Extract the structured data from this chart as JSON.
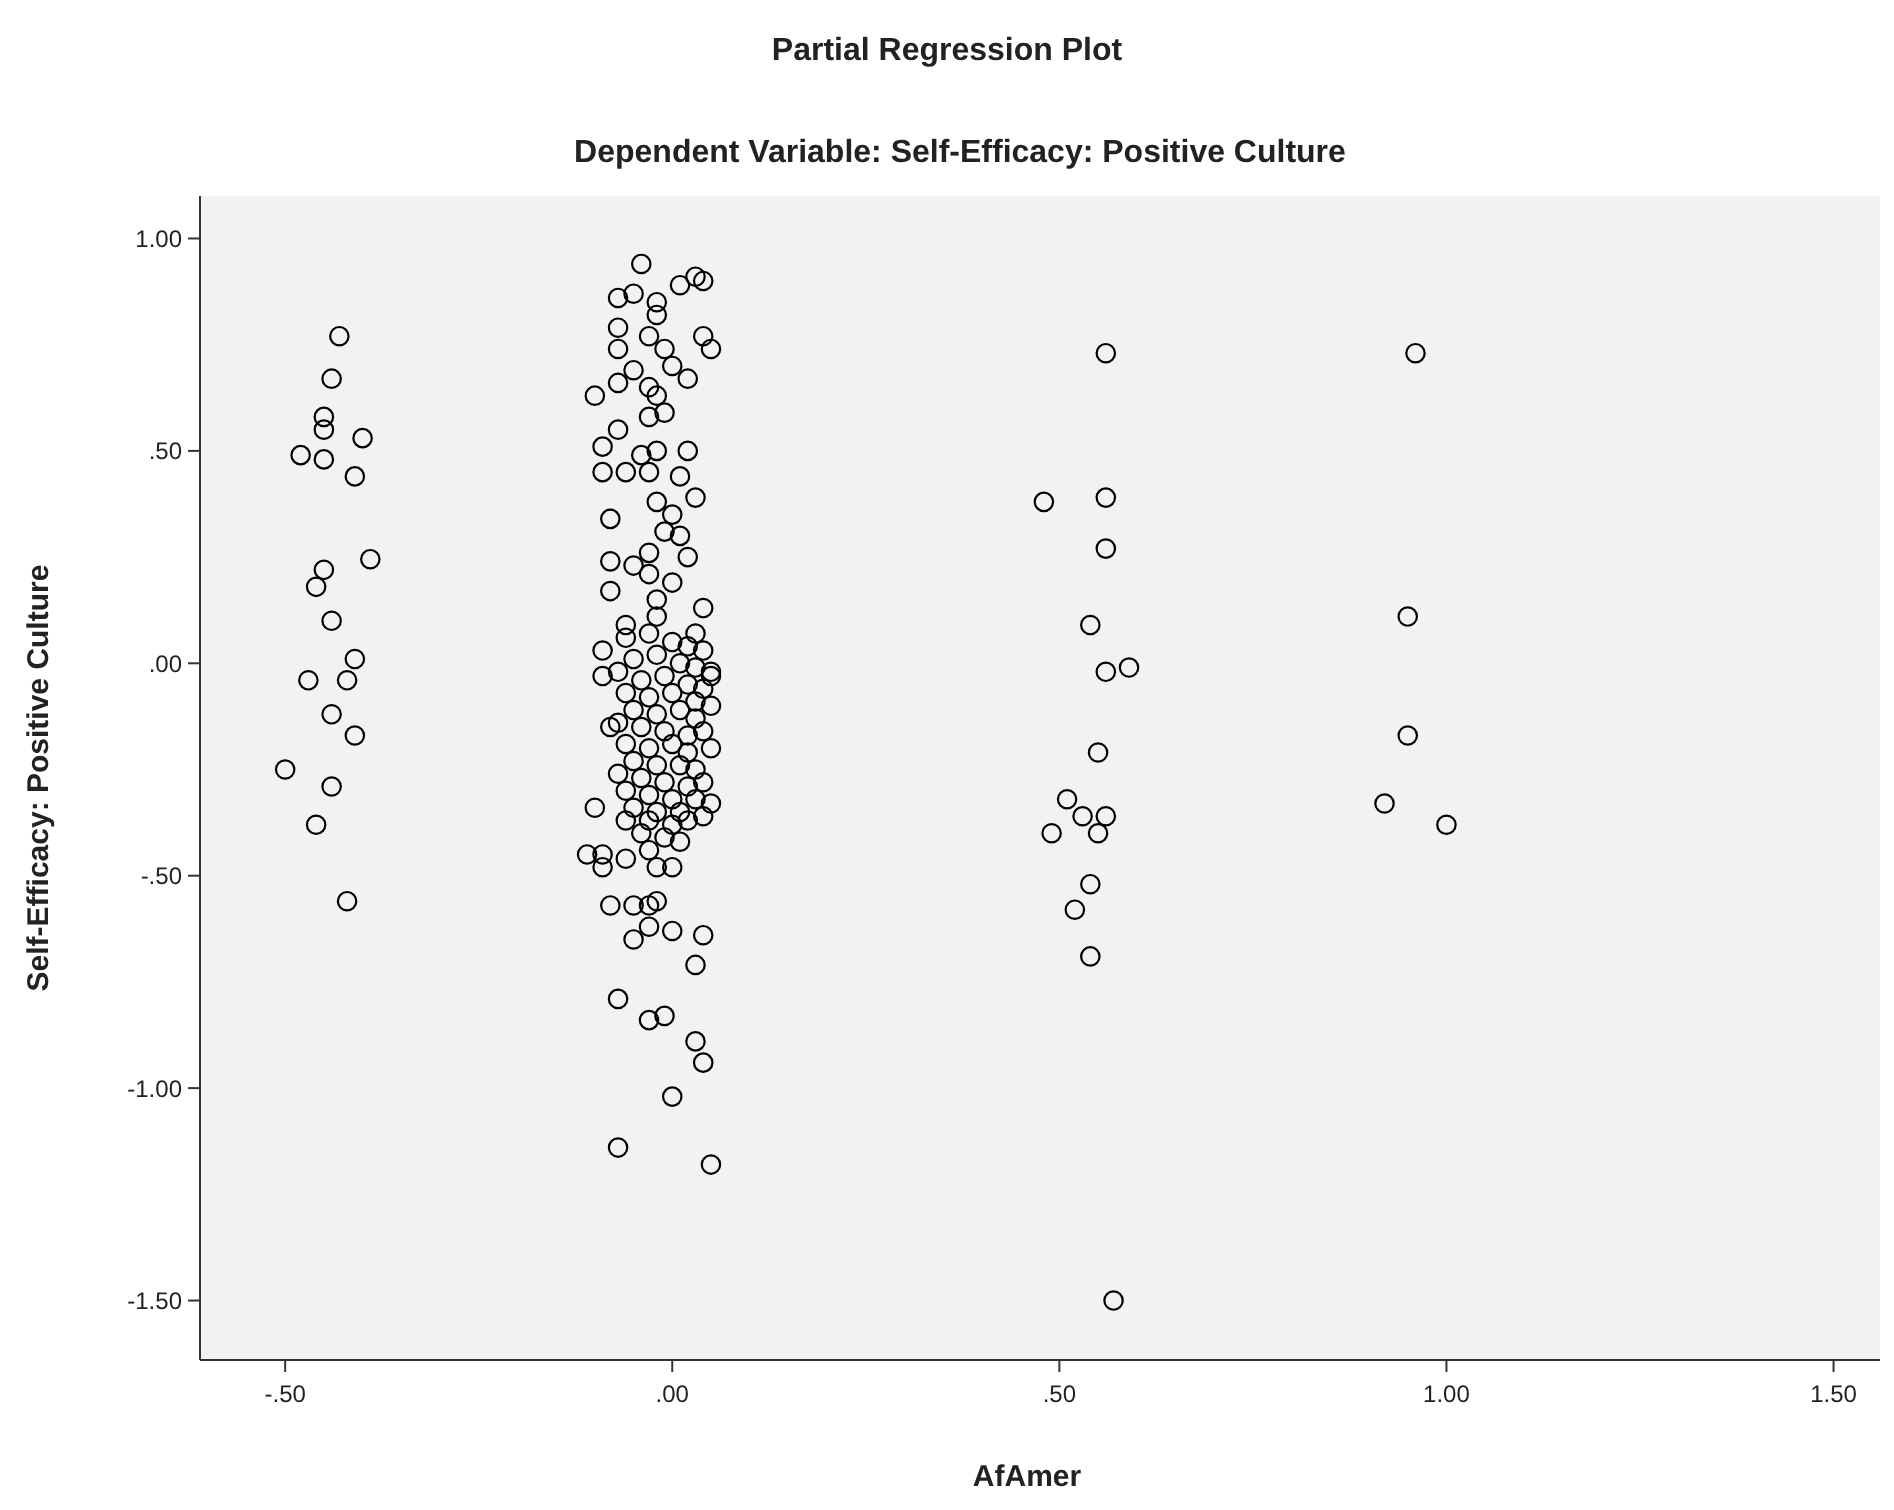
{
  "chart_data": {
    "type": "scatter",
    "title": "Partial Regression Plot",
    "subtitle": "Dependent Variable: Self-Efficacy: Positive Culture",
    "xlabel": "AfAmer",
    "ylabel": "Self-Efficacy: Positive Culture",
    "xlim": [
      -0.61,
      1.56
    ],
    "ylim": [
      -1.64,
      1.1
    ],
    "xticks": [
      {
        "value": -0.5,
        "label": "-.50"
      },
      {
        "value": 0,
        "label": ".00"
      },
      {
        "value": 0.5,
        "label": ".50"
      },
      {
        "value": 1,
        "label": "1.00"
      },
      {
        "value": 1.5,
        "label": "1.50"
      }
    ],
    "yticks": [
      {
        "value": 1,
        "label": "1.00"
      },
      {
        "value": 0.5,
        "label": ".50"
      },
      {
        "value": 0,
        "label": ".00"
      },
      {
        "value": -0.5,
        "label": "-.50"
      },
      {
        "value": -1,
        "label": "-1.00"
      },
      {
        "value": -1.5,
        "label": "-1.50"
      }
    ],
    "grid": false,
    "marker": "circle",
    "series": [
      {
        "color": "#000000",
        "x": [
          -0.43,
          -0.44,
          -0.45,
          -0.45,
          -0.4,
          -0.48,
          -0.45,
          -0.41,
          -0.39,
          -0.45,
          -0.46,
          -0.44,
          -0.41,
          -0.47,
          -0.42,
          -0.44,
          -0.41,
          -0.5,
          -0.44,
          -0.46,
          -0.42,
          0.56,
          0.48,
          0.56,
          0.56,
          0.54,
          0.56,
          0.59,
          0.55,
          0.51,
          0.53,
          0.56,
          0.55,
          0.49,
          0.54,
          0.52,
          0.54,
          0.57,
          0.96,
          0.95,
          0.95,
          0.92,
          1.0,
          -0.04,
          -0.07,
          -0.05,
          -0.02,
          0.01,
          0.03,
          0.04,
          -0.02,
          -0.07,
          -0.07,
          -0.03,
          -0.01,
          0.04,
          0.05,
          0.0,
          -0.05,
          0.02,
          -0.1,
          -0.07,
          -0.03,
          -0.02,
          -0.03,
          -0.01,
          -0.07,
          -0.09,
          -0.09,
          -0.06,
          -0.04,
          -0.02,
          0.02,
          -0.03,
          -0.02,
          0.01,
          0.03,
          0.0,
          -0.08,
          -0.01,
          0.01,
          -0.03,
          0.02,
          -0.08,
          -0.05,
          -0.03,
          -0.08,
          0.0,
          -0.02,
          -0.06,
          0.04,
          -0.02,
          -0.09,
          -0.09,
          0.03,
          0.05,
          -0.08,
          -0.1,
          -0.11,
          -0.09,
          -0.09,
          -0.06,
          -0.02,
          0.0,
          -0.08,
          -0.05,
          -0.03,
          -0.02,
          -0.05,
          -0.03,
          0.0,
          0.04,
          0.03,
          -0.07,
          -0.03,
          -0.01,
          0.03,
          0.04,
          0.0,
          -0.07,
          0.05,
          -0.06,
          -0.03,
          0.0,
          0.02,
          0.04,
          -0.05,
          -0.02,
          0.01,
          0.03,
          0.05,
          -0.07,
          -0.04,
          -0.01,
          0.02,
          0.04,
          -0.06,
          -0.03,
          0.0,
          0.03,
          0.05,
          -0.05,
          -0.02,
          0.01,
          0.03,
          -0.07,
          -0.04,
          -0.01,
          0.02,
          0.04,
          -0.06,
          -0.03,
          0.0,
          0.02,
          0.05,
          -0.05,
          -0.02,
          0.01,
          0.03,
          -0.07,
          -0.04,
          -0.01,
          0.02,
          0.04,
          -0.06,
          -0.03,
          0.0,
          0.03,
          0.05,
          -0.05,
          -0.02,
          0.01,
          0.04,
          -0.06,
          -0.03,
          0.0,
          0.02,
          -0.04,
          -0.01,
          0.01,
          -0.03
        ],
        "values": [
          0.77,
          0.67,
          0.58,
          0.55,
          0.53,
          0.49,
          0.48,
          0.44,
          0.245,
          0.22,
          0.18,
          0.1,
          0.01,
          -0.04,
          -0.04,
          -0.12,
          -0.17,
          -0.25,
          -0.29,
          -0.38,
          -0.56,
          0.73,
          0.38,
          0.39,
          0.27,
          0.09,
          -0.02,
          -0.01,
          -0.21,
          -0.32,
          -0.36,
          -0.36,
          -0.4,
          -0.4,
          -0.52,
          -0.58,
          -0.69,
          -1.5,
          0.73,
          0.11,
          -0.17,
          -0.33,
          -0.38,
          0.94,
          0.86,
          0.87,
          0.85,
          0.89,
          0.91,
          0.9,
          0.82,
          0.79,
          0.74,
          0.77,
          0.74,
          0.77,
          0.74,
          0.7,
          0.69,
          0.67,
          0.63,
          0.66,
          0.65,
          0.63,
          0.58,
          0.59,
          0.55,
          0.51,
          0.45,
          0.45,
          0.49,
          0.5,
          0.5,
          0.45,
          0.38,
          0.44,
          0.39,
          0.35,
          0.34,
          0.31,
          0.3,
          0.26,
          0.25,
          0.24,
          0.23,
          0.21,
          0.17,
          0.19,
          0.15,
          0.09,
          0.13,
          0.11,
          0.03,
          -0.03,
          0.07,
          -0.02,
          -0.15,
          -0.34,
          -0.45,
          -0.45,
          -0.48,
          -0.46,
          -0.48,
          -0.48,
          -0.57,
          -0.57,
          -0.57,
          -0.56,
          -0.65,
          -0.62,
          -0.63,
          -0.64,
          -0.71,
          -0.79,
          -0.84,
          -0.83,
          -0.89,
          -0.94,
          -1.02,
          -1.14,
          -1.18,
          0.06,
          0.07,
          0.05,
          0.04,
          0.03,
          0.01,
          0.02,
          0.0,
          -0.01,
          -0.03,
          -0.02,
          -0.04,
          -0.03,
          -0.05,
          -0.06,
          -0.07,
          -0.08,
          -0.07,
          -0.09,
          -0.1,
          -0.11,
          -0.12,
          -0.11,
          -0.13,
          -0.14,
          -0.15,
          -0.16,
          -0.17,
          -0.16,
          -0.19,
          -0.2,
          -0.19,
          -0.21,
          -0.2,
          -0.23,
          -0.24,
          -0.24,
          -0.25,
          -0.26,
          -0.27,
          -0.28,
          -0.29,
          -0.28,
          -0.3,
          -0.31,
          -0.32,
          -0.32,
          -0.33,
          -0.34,
          -0.35,
          -0.35,
          -0.36,
          -0.37,
          -0.37,
          -0.38,
          -0.37,
          -0.4,
          -0.41,
          -0.42,
          -0.44
        ]
      }
    ]
  }
}
